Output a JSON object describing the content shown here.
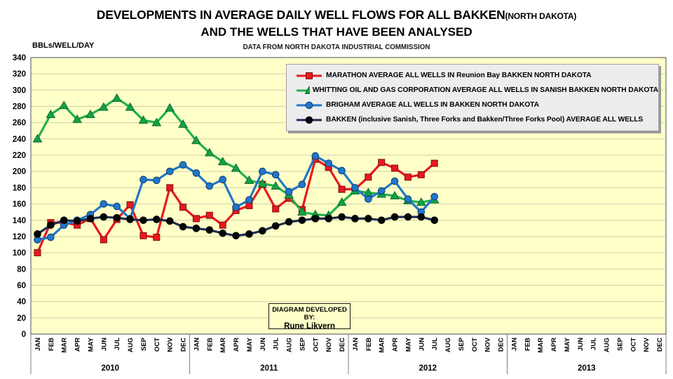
{
  "page": {
    "title_main": "DEVELOPMENTS IN AVERAGE DAILY WELL FLOWS FOR ALL BAKKEN",
    "title_paren": "(NORTH DAKOTA)",
    "title_line2": "AND THE WELLS THAT HAVE BEEN ANALYSED",
    "subtitle": "DATA FROM NORTH DAKOTA INDUSTRIAL COMMISSION",
    "unit_label": "BBLs/WELL/DAY"
  },
  "footer_box": {
    "line1": "DIAGRAM DEVELOPED BY:",
    "line2": "Rune Likvern"
  },
  "colors": {
    "plot_background": "#FFFFC8",
    "gridline": "#cfcfad",
    "plot_border": "#7f7f7f",
    "legend_background": "#EDEDED"
  },
  "chart_data": {
    "type": "line",
    "title": "DEVELOPMENTS IN AVERAGE DAILY WELL FLOWS FOR ALL BAKKEN (NORTH DAKOTA) AND THE WELLS THAT HAVE BEEN ANALYSED",
    "subtitle": "DATA FROM NORTH DAKOTA INDUSTRIAL COMMISSION",
    "ylabel": "BBLs/WELL/DAY",
    "ylim": [
      0,
      340
    ],
    "y_ticks": [
      340,
      320,
      300,
      280,
      260,
      240,
      220,
      200,
      180,
      160,
      140,
      120,
      100,
      80,
      60,
      40,
      20,
      0
    ],
    "x_years": [
      "2010",
      "2011",
      "2012",
      "2013"
    ],
    "x_months": [
      "JAN",
      "FEB",
      "MAR",
      "APR",
      "MAY",
      "JUN",
      "JUL",
      "AUG",
      "SEP",
      "OCT",
      "NOV",
      "DEC"
    ],
    "n_slots": 48,
    "grid": "horizontal-only",
    "legend_position": "top-right-inside",
    "series": [
      {
        "name": "marathon",
        "legend": "MARATHON AVERAGE ALL WELLS IN Reunion Bay BAKKEN NORTH DAKOTA",
        "marker": "square",
        "color": "#E8191C",
        "marker_fill": "#E8191C",
        "marker_stroke": "#7F1012",
        "values": [
          100,
          137,
          137,
          134,
          142,
          116,
          141,
          159,
          121,
          119,
          180,
          156,
          142,
          146,
          134,
          152,
          158,
          184,
          154,
          167,
          153,
          215,
          205,
          178,
          178,
          193,
          211,
          204,
          193,
          196,
          210
        ]
      },
      {
        "name": "whiting",
        "legend": "WHITTING OIL AND GAS CORPORATION AVERAGE ALL WELLS IN SANISH BAKKEN NORTH DAKOTA",
        "marker": "triangle",
        "color": "#22B14C",
        "marker_fill": "#12A243",
        "marker_stroke": "#0B6B31",
        "values": [
          240,
          270,
          281,
          264,
          270,
          279,
          290,
          279,
          263,
          260,
          278,
          258,
          238,
          223,
          212,
          204,
          189,
          185,
          182,
          171,
          150,
          147,
          146,
          162,
          176,
          174,
          172,
          170,
          164,
          162,
          165
        ]
      },
      {
        "name": "brigham",
        "legend": "BRIGHAM AVERAGE ALL WELLS IN BAKKEN NORTH DAKOTA",
        "marker": "circle",
        "color": "#2077C9",
        "marker_fill": "#2077C9",
        "marker_stroke": "#123C6E",
        "values": [
          116,
          119,
          134,
          140,
          147,
          160,
          157,
          142,
          190,
          189,
          200,
          208,
          198,
          182,
          190,
          156,
          165,
          200,
          196,
          175,
          184,
          219,
          210,
          201,
          180,
          166,
          176,
          188,
          166,
          150,
          169
        ]
      },
      {
        "name": "bakken",
        "legend": "BAKKEN (inclusive Sanish, Three Forks and Bakken/Three Forks Pool) AVERAGE ALL WELLS",
        "marker": "circle",
        "color": "#1C2E54",
        "marker_fill": "#050505",
        "marker_stroke": "#000000",
        "values": [
          123,
          134,
          140,
          139,
          142,
          144,
          143,
          141,
          140,
          141,
          139,
          132,
          130,
          128,
          124,
          121,
          123,
          127,
          133,
          138,
          140,
          142,
          142,
          144,
          142,
          142,
          140,
          144,
          144,
          144,
          140
        ]
      }
    ]
  }
}
